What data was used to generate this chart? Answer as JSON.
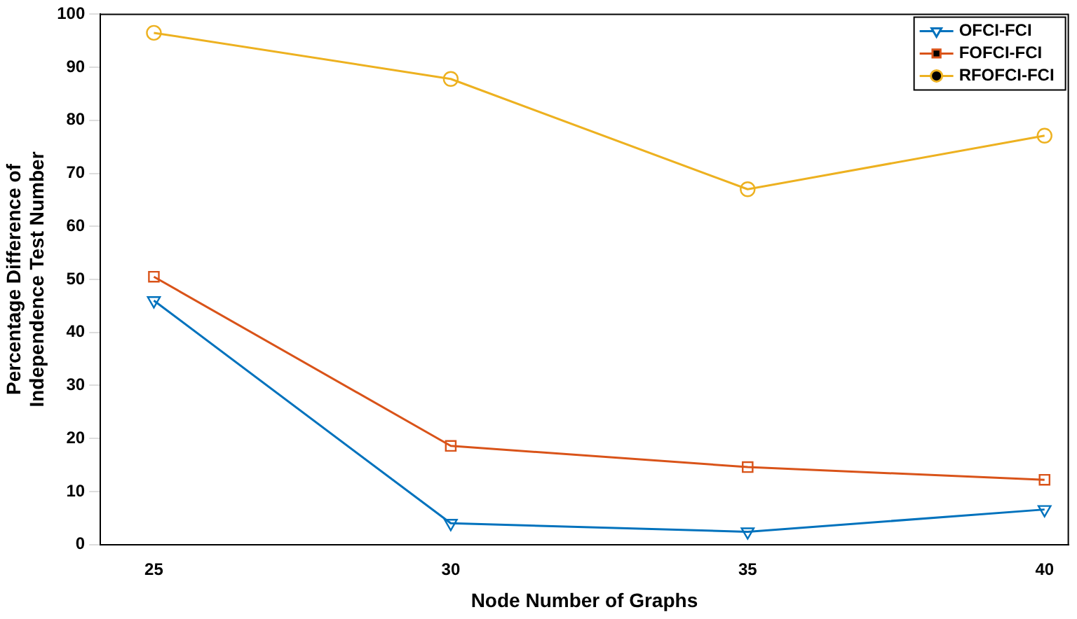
{
  "chart_data": {
    "type": "line",
    "xlabel": "Node Number of Graphs",
    "ylabel": "Percentage Difference of\nIndependence Test Number",
    "x": [
      25,
      30,
      35,
      40
    ],
    "xlim": [
      24.1,
      40.4
    ],
    "xticks": [
      25,
      30,
      35,
      40
    ],
    "ylim": [
      0,
      100
    ],
    "yticks": [
      0,
      10,
      20,
      30,
      40,
      50,
      60,
      70,
      80,
      90,
      100
    ],
    "grid": false,
    "legend": "top right",
    "line_style": "solid",
    "series": [
      {
        "name": "OFCI-FCI",
        "color": "#0072bd",
        "marker": "triangle",
        "values": [
          46.0,
          4.0,
          2.4,
          6.6
        ]
      },
      {
        "name": "FOFCI-FCI",
        "color": "#d95319",
        "marker": "square",
        "values": [
          50.5,
          18.6,
          14.6,
          12.2
        ]
      },
      {
        "name": "RFOFCI-FCI",
        "color": "#edb120",
        "marker": "circle",
        "values": [
          96.5,
          87.8,
          67.0,
          77.1
        ]
      }
    ]
  }
}
